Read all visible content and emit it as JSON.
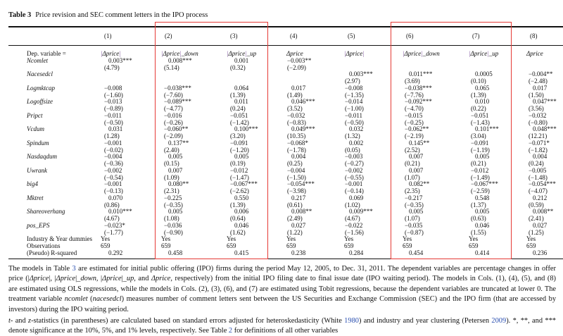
{
  "title": {
    "label": "Table 3",
    "text": "Price revision and SEC comment letters in the IPO process"
  },
  "colors": {
    "highlight_box": "#e53935",
    "link": "#2a4fb0"
  },
  "highlight_boxes": [
    [
      "(2)",
      "(3)"
    ],
    [
      "(6)",
      "(7)"
    ]
  ],
  "columns": [
    "(1)",
    "(2)",
    "(3)",
    "(4)",
    "(5)",
    "(6)",
    "(7)",
    "(8)"
  ],
  "dep_label": "Dep. variable =",
  "dep_variables": [
    "|Δprice|",
    "|Δprice|_down",
    "|Δprice|_up",
    "Δprice",
    "|Δprice|",
    "|Δprice|_down",
    "|Δprice|_up",
    "Δprice"
  ],
  "rows": [
    {
      "label": "Ncomlet",
      "coef": [
        "0.003***",
        "0.008***",
        "0.001",
        "−0.003**",
        "",
        "",
        "",
        ""
      ],
      "t": [
        "(4.79)",
        "(5.14)",
        "(0.32)",
        "(−2.09)",
        "",
        "",
        "",
        ""
      ]
    },
    {
      "label": "Nacesedcl",
      "coef": [
        "",
        "",
        "",
        "",
        "0.003***",
        "0.011***",
        "0.0005",
        "−0.004**"
      ],
      "t": [
        "",
        "",
        "",
        "",
        "(2.97)",
        "(3.69)",
        "(0.10)",
        "(−2.48)"
      ]
    },
    {
      "label": "Logmktcap",
      "coef": [
        "−0.008",
        "−0.038***",
        "0.064",
        "0.017",
        "−0.008",
        "−0.038***",
        "0.065",
        "0.017"
      ],
      "t": [
        "(−1.60)",
        "(−7.60)",
        "(1.39)",
        "(1.49)",
        "(−1.35)",
        "(−7.76)",
        "(1.39)",
        "(1.50)"
      ]
    },
    {
      "label": "Logoffsize",
      "coef": [
        "−0.013",
        "−0.089***",
        "0.011",
        "0.046***",
        "−0.014",
        "−0.092***",
        "0.010",
        "0.047***"
      ],
      "t": [
        "(−0.89)",
        "(−4.77)",
        "(0.24)",
        "(3.52)",
        "(−1.00)",
        "(−4.70)",
        "(0.22)",
        "(3.56)"
      ]
    },
    {
      "label": "Pripct",
      "coef": [
        "−0.011",
        "−0.016",
        "−0.051",
        "−0.032",
        "−0.011",
        "−0.015",
        "−0.051",
        "−0.032"
      ],
      "t": [
        "(−0.50)",
        "(−0.26)",
        "(−1.42)",
        "(−0.83)",
        "(−0.50)",
        "(−0.25)",
        "(−1.43)",
        "(−0.80)"
      ]
    },
    {
      "label": "Vcdum",
      "coef": [
        "0.031",
        "−0.060**",
        "0.100***",
        "0.049***",
        "0.032",
        "−0.062**",
        "0.101***",
        "0.048***"
      ],
      "t": [
        "(1.28)",
        "(−2.09)",
        "(3.20)",
        "(10.35)",
        "(1.32)",
        "(−2.19)",
        "(3.04)",
        "(12.21)"
      ]
    },
    {
      "label": "Spindum",
      "coef": [
        "−0.001",
        "0.137**",
        "−0.091",
        "−0.068*",
        "0.002",
        "0.145**",
        "−0.091",
        "−0.071*"
      ],
      "t": [
        "(−0.02)",
        "(2.40)",
        "(−1.20)",
        "(−1.78)",
        "(0.05)",
        "(2.52)",
        "(−1.19)",
        "(−1.82)"
      ]
    },
    {
      "label": "Nasdaqdum",
      "coef": [
        "−0.004",
        "0.005",
        "0.005",
        "0.004",
        "−0.003",
        "0.007",
        "0.005",
        "0.004"
      ],
      "t": [
        "(−0.36)",
        "(0.15)",
        "(0.19)",
        "(0.25)",
        "(−0.27)",
        "(0.21)",
        "(0.21)",
        "(0.24)"
      ]
    },
    {
      "label": "Uwrank",
      "coef": [
        "−0.002",
        "0.007",
        "−0.012",
        "−0.004",
        "−0.002",
        "0.007",
        "−0.012",
        "−0.005"
      ],
      "t": [
        "(−0.54)",
        "(1.09)",
        "(−1.47)",
        "(−1.50)",
        "(−0.55)",
        "(1.07)",
        "(−1.49)",
        "(−1.48)"
      ]
    },
    {
      "label": "big4",
      "coef": [
        "−0.001",
        "0.080**",
        "−0.067***",
        "−0.054***",
        "−0.001",
        "0.082**",
        "−0.067***",
        "−0.054***"
      ],
      "t": [
        "(−0.13)",
        "(2.31)",
        "(−2.62)",
        "(−3.98)",
        "(−0.14)",
        "(2.35)",
        "(−2.59)",
        "(−4.07)"
      ]
    },
    {
      "label": "Mktret",
      "coef": [
        "0.070",
        "−0.225",
        "0.550",
        "0.217",
        "0.069",
        "−0.217",
        "0.548",
        "0.212"
      ],
      "t": [
        "(0.86)",
        "(−0.35)",
        "(1.39)",
        "(0.61)",
        "(1.02)",
        "(−0.35)",
        "(1.37)",
        "(0.59)"
      ]
    },
    {
      "label": "Shareoverhang",
      "coef": [
        "0.010***",
        "0.005",
        "0.006",
        "0.008**",
        "0.009***",
        "0.005",
        "0.005",
        "0.008**"
      ],
      "t": [
        "(4.67)",
        "(1.08)",
        "(0.64)",
        "(2.49)",
        "(4.67)",
        "(1.07)",
        "(0.63)",
        "(2.41)"
      ]
    },
    {
      "label": "pos_EPS",
      "coef": [
        "−0.023*",
        "−0.036",
        "0.046",
        "0.027",
        "−0.022",
        "−0.035",
        "0.046",
        "0.027"
      ],
      "t": [
        "(−1.77)",
        "(−0.90)",
        "(1.62)",
        "(1.22)",
        "(−1.56)",
        "(−0.87)",
        "(1.55)",
        "(1.25)"
      ]
    }
  ],
  "footer_rows": [
    {
      "label": "Industry & Year dummies",
      "values": [
        "Yes",
        "Yes",
        "Yes",
        "Yes",
        "Yes",
        "Yes",
        "Yes",
        "Yes"
      ],
      "kind": "text"
    },
    {
      "label": "Observations",
      "values": [
        "659",
        "659",
        "659",
        "659",
        "659",
        "659",
        "659",
        "659"
      ],
      "kind": "text"
    },
    {
      "label": "(Pseudo) R-squared",
      "values": [
        "0.292",
        "0.458",
        "0.415",
        "0.238",
        "0.284",
        "0.454",
        "0.414",
        "0.236"
      ],
      "kind": "num"
    }
  ],
  "notes": [
    [
      [
        {
          "t": "The models in Table "
        },
        {
          "t": "3",
          "s": "link"
        },
        {
          "t": " are estimated for initial public offering (IPO) firms during the period May 12, 2005, to Dec. 31, 2011. The dependent variables are percentage changes in offer"
        }
      ],
      [
        {
          "t": "price (|"
        },
        {
          "t": "Δprice",
          "s": "it"
        },
        {
          "t": "|, |"
        },
        {
          "t": "Δprice",
          "s": "it"
        },
        {
          "t": "|"
        },
        {
          "t": "_down",
          "s": "it"
        },
        {
          "t": ", |"
        },
        {
          "t": "Δprice",
          "s": "it"
        },
        {
          "t": "|"
        },
        {
          "t": "_up",
          "s": "it"
        },
        {
          "t": ", and "
        },
        {
          "t": "Δprice",
          "s": "it"
        },
        {
          "t": ", respectively) from the initial IPO filing date to final issue date (IPO waiting period). The models in Cols. (1), (4), (5), and (8)"
        }
      ],
      [
        {
          "t": "are estimated using OLS regressions, while the models in Cols. (2), (3), (6), and (7) are estimated using Tobit regressions, because the dependent variables are truncated at lower 0. The"
        }
      ],
      [
        {
          "t": "treatment variable "
        },
        {
          "t": "ncomlet",
          "s": "it"
        },
        {
          "t": " ("
        },
        {
          "t": "nacesedcl",
          "s": "it"
        },
        {
          "t": ") measures number of comment letters sent between the US Securities and Exchange Commission (SEC) and the IPO firm (that are accessed by"
        }
      ],
      [
        {
          "t": "investors) during the IPO waiting period."
        }
      ]
    ],
    [
      [
        {
          "t": "t",
          "s": "it"
        },
        {
          "t": "- and "
        },
        {
          "t": "z",
          "s": "it"
        },
        {
          "t": "-statistics (in parentheses) are calculated based on standard errors adjusted for heteroskedasticity (White "
        },
        {
          "t": "1980",
          "s": "link"
        },
        {
          "t": ") and industry and year clustering (Petersen "
        },
        {
          "t": "2009",
          "s": "link"
        },
        {
          "t": "). *, **, and ***"
        }
      ],
      [
        {
          "t": "denote significance at the 10%, 5%, and 1% levels, respectively. See Table "
        },
        {
          "t": "2",
          "s": "link"
        },
        {
          "t": " for definitions of all other variables"
        }
      ]
    ]
  ]
}
